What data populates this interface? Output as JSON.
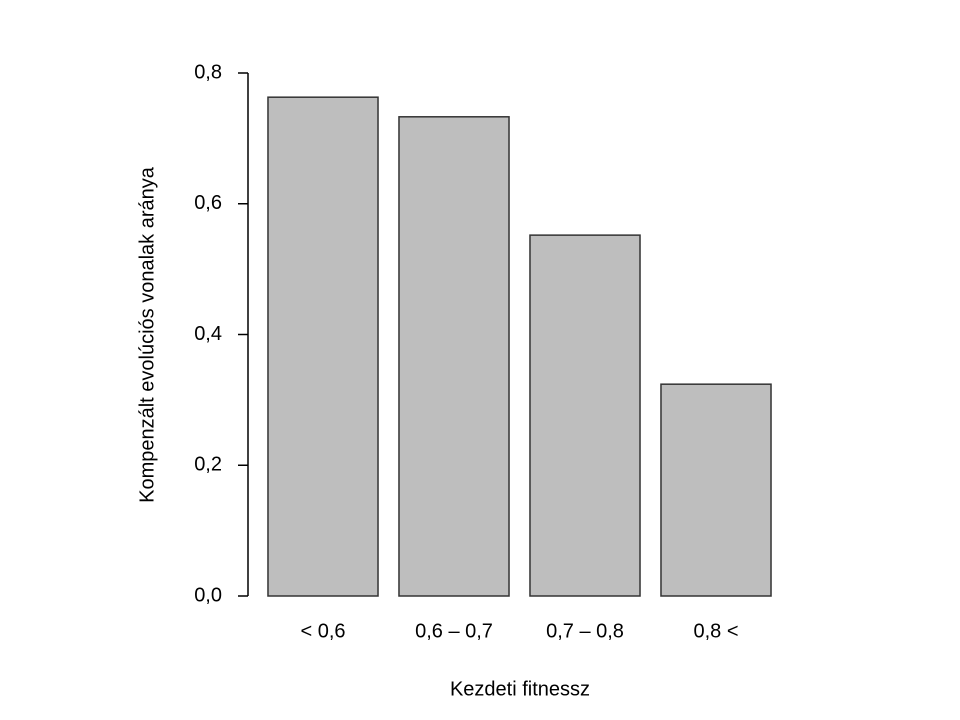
{
  "chart_data": {
    "type": "bar",
    "x_label": "Kezdeti fitnessz",
    "y_label": "Kompenzált evolúciós vonalak aránya",
    "categories": [
      "< 0,6",
      "0,6 – 0,7",
      "0,7 – 0,8",
      "0,8 <"
    ],
    "values": [
      0.763,
      0.733,
      0.552,
      0.324
    ],
    "color": "#bebebe",
    "ylim": [
      0,
      0.8
    ],
    "yticks": [
      {
        "value": 0,
        "label": "0,0"
      },
      {
        "value": 0.2,
        "label": "0,2"
      },
      {
        "value": 0.4,
        "label": "0,4"
      },
      {
        "value": 0.6,
        "label": "0,6"
      },
      {
        "value": 0.8,
        "label": "0,8"
      }
    ]
  }
}
